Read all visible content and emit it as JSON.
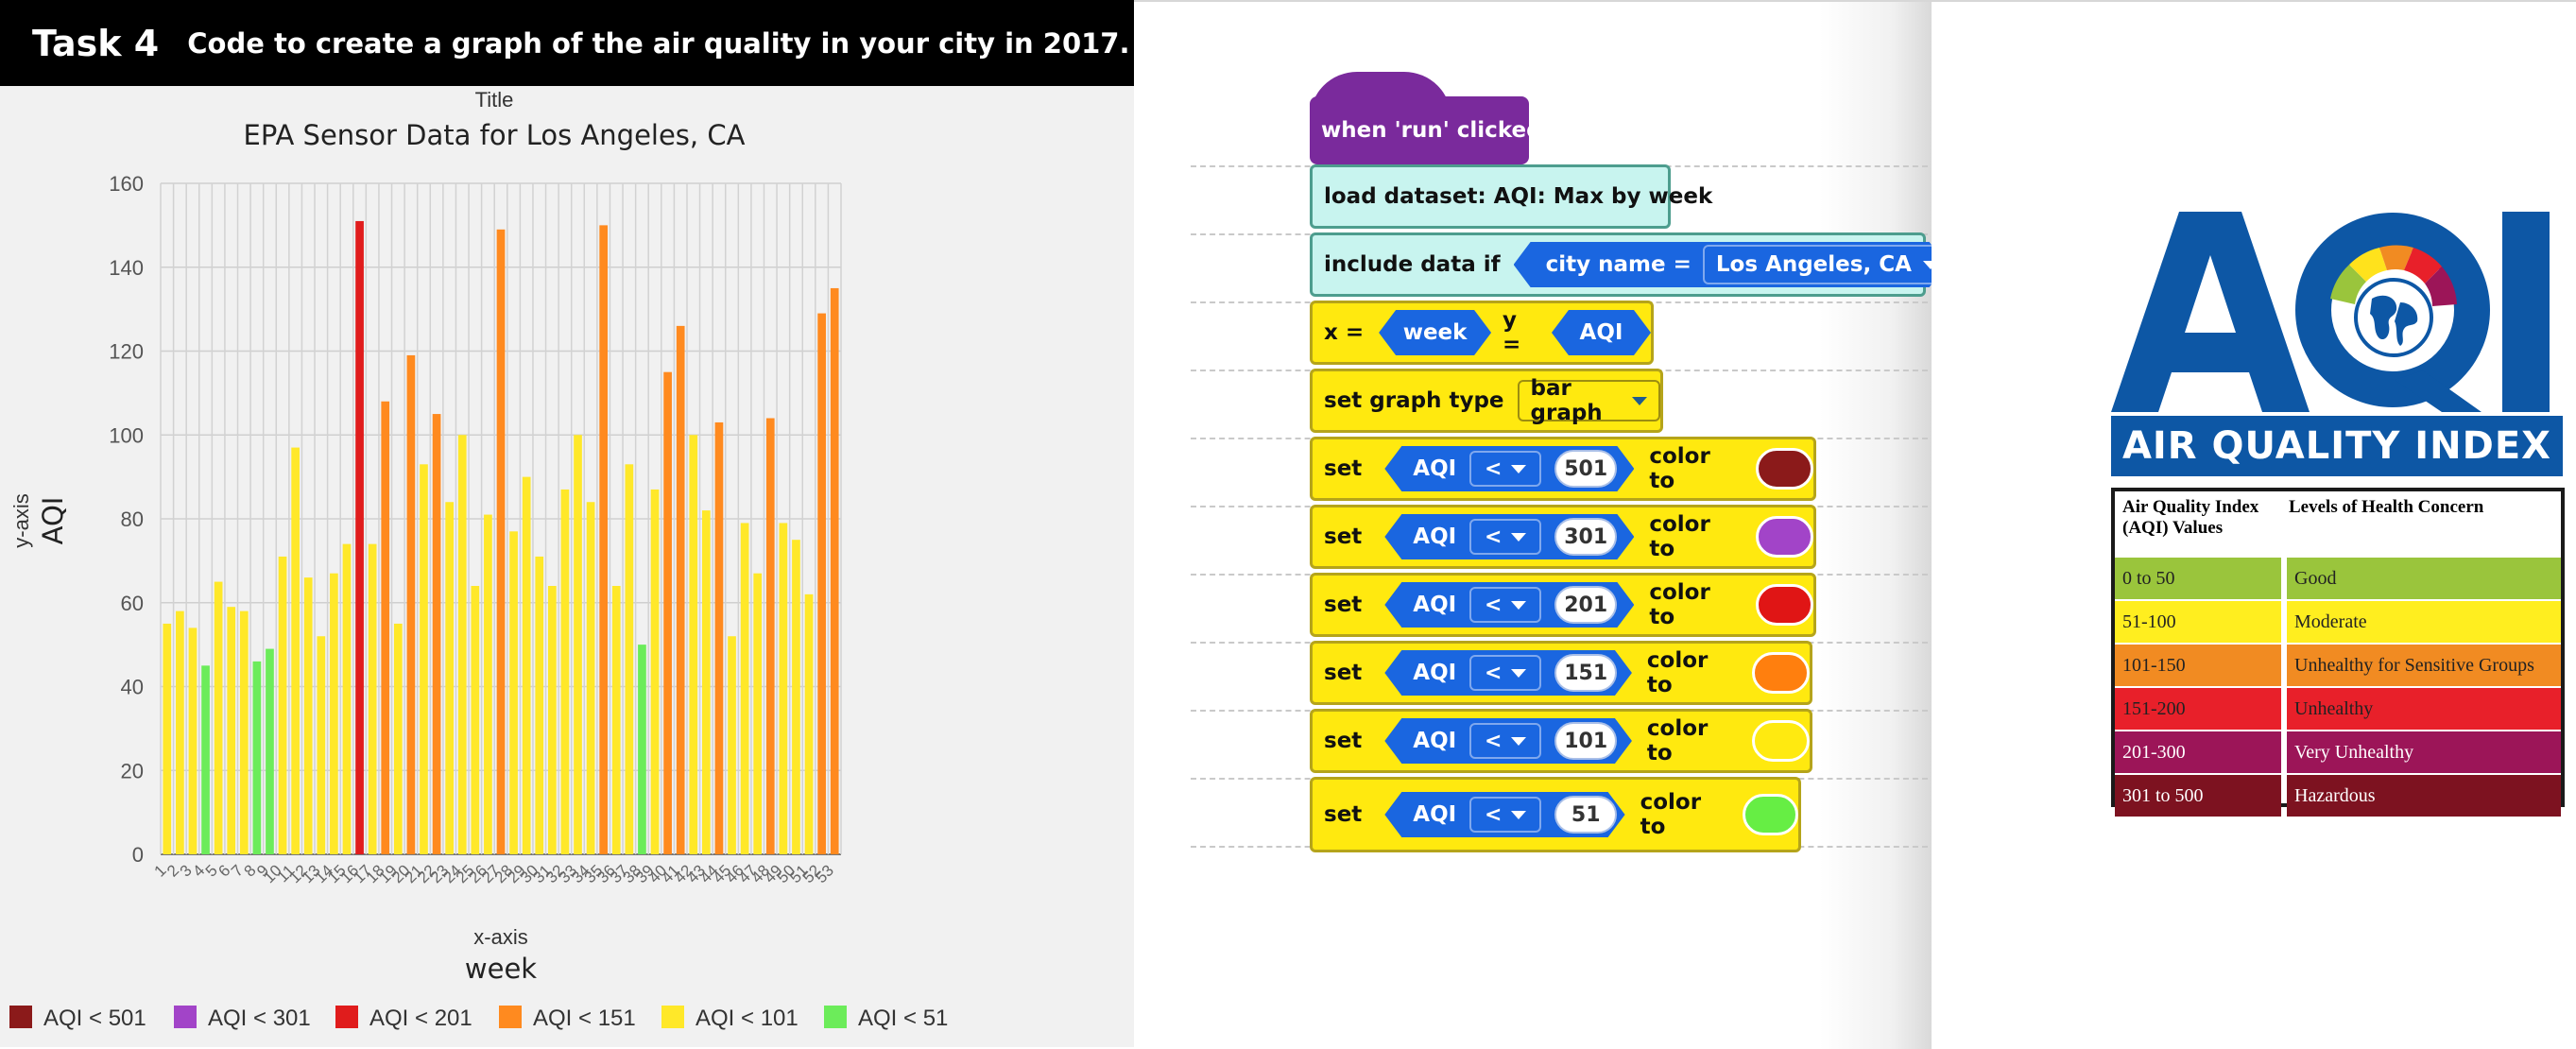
{
  "header": {
    "task_label": "Task 4",
    "task_text": "Code to create a graph of the air quality in your city in 2017."
  },
  "chart_data": {
    "type": "bar",
    "title_label": "Title",
    "title": "EPA Sensor Data for Los Angeles, CA",
    "ylabel_caption": "y-axis",
    "ylabel": "AQI",
    "xlabel_caption": "x-axis",
    "xlabel": "week",
    "ylim": [
      0,
      160
    ],
    "yticks": [
      0,
      20,
      40,
      60,
      80,
      100,
      120,
      140,
      160
    ],
    "grid": true,
    "categories": [
      "1",
      "2",
      "3",
      "4",
      "5",
      "6",
      "7",
      "8",
      "9",
      "10",
      "11",
      "12",
      "13",
      "14",
      "15",
      "16",
      "17",
      "18",
      "19",
      "20",
      "21",
      "22",
      "23",
      "24",
      "25",
      "26",
      "27",
      "28",
      "29",
      "30",
      "31",
      "32",
      "33",
      "34",
      "35",
      "36",
      "37",
      "38",
      "39",
      "40",
      "41",
      "42",
      "43",
      "44",
      "45",
      "46",
      "47",
      "48",
      "49",
      "50",
      "51",
      "52",
      "53"
    ],
    "values": [
      55,
      58,
      54,
      45,
      65,
      59,
      58,
      46,
      49,
      71,
      97,
      66,
      52,
      67,
      74,
      151,
      74,
      108,
      55,
      119,
      93,
      105,
      84,
      100,
      64,
      81,
      149,
      77,
      90,
      71,
      64,
      87,
      100,
      84,
      150,
      64,
      93,
      50,
      87,
      115,
      126,
      100,
      82,
      103,
      52,
      79,
      67,
      104,
      79,
      75,
      62,
      129,
      135
    ],
    "legend": [
      {
        "label": "AQI < 501",
        "color": "#8b1a1a"
      },
      {
        "label": "AQI < 301",
        "color": "#a244c8"
      },
      {
        "label": "AQI < 201",
        "color": "#e01c1c"
      },
      {
        "label": "AQI < 151",
        "color": "#ff8a1f"
      },
      {
        "label": "AQI < 101",
        "color": "#ffe829"
      },
      {
        "label": "AQI < 51",
        "color": "#6cec5a"
      }
    ],
    "legend_position": "bottom"
  },
  "code": {
    "event": "when 'run' clicked",
    "load": "load dataset: AQI: Max by week",
    "include": "include data if",
    "condition_field": "city name =",
    "condition_value": "Los Angeles, CA",
    "x_label": "x =",
    "x_value": "week",
    "y_label": "y =",
    "y_value": "AQI",
    "graph_type_label": "set graph type",
    "graph_type_value": "bar graph",
    "set_label": "set",
    "field": "AQI",
    "operator": "<",
    "color_to": "color to",
    "rules": [
      {
        "threshold": "501",
        "color": "#8b1a1a"
      },
      {
        "threshold": "301",
        "color": "#a244c8"
      },
      {
        "threshold": "201",
        "color": "#e01515"
      },
      {
        "threshold": "151",
        "color": "#ff7f0e"
      },
      {
        "threshold": "101",
        "color": "#ffea10"
      },
      {
        "threshold": "51",
        "color": "#66ee44"
      }
    ]
  },
  "aqi": {
    "logo_text": "AQI",
    "banner": "AIR QUALITY INDEX",
    "col1_header": "Air Quality Index (AQI) Values",
    "col2_header": "Levels of Health Concern",
    "rows": [
      {
        "range": "0 to 50",
        "level": "Good",
        "color": "#9ac53c"
      },
      {
        "range": "51-100",
        "level": "Moderate",
        "color": "#ffee1f"
      },
      {
        "range": "101-150",
        "level": "Unhealthy for Sensitive Groups",
        "color": "#f18b22"
      },
      {
        "range": "151-200",
        "level": "Unhealthy",
        "color": "#e8202a"
      },
      {
        "range": "201-300",
        "level": "Very Unhealthy",
        "color": "#9c1558"
      },
      {
        "range": "301 to 500",
        "level": "Hazardous",
        "color": "#7d1220"
      }
    ]
  }
}
